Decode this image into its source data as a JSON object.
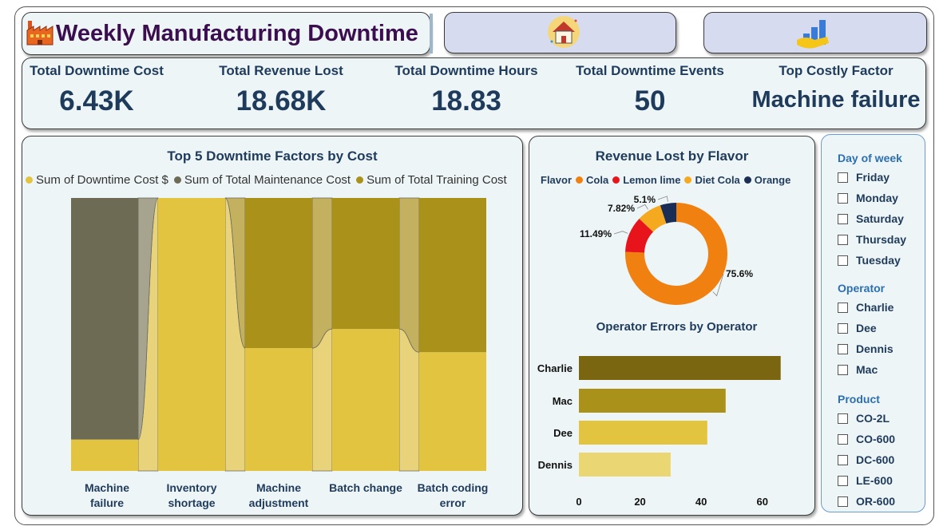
{
  "header": {
    "title": "Weekly Manufacturing Downtime",
    "icons": [
      "factory-icon",
      "home-icon",
      "bar-chart-icon"
    ]
  },
  "kpis": [
    {
      "label": "Total Downtime Cost",
      "value": "6.43K"
    },
    {
      "label": "Total Revenue Lost",
      "value": "18.68K"
    },
    {
      "label": "Total Downtime Hours",
      "value": "18.83"
    },
    {
      "label": "Total Downtime Events",
      "value": "50"
    },
    {
      "label": "Top Costly Factor",
      "value": "Machine failure"
    }
  ],
  "factors_chart": {
    "title": "Top 5 Downtime Factors by Cost",
    "legend": [
      {
        "label": "Sum of Downtime Cost $",
        "color": "#e3c440"
      },
      {
        "label": "Sum of Total Maintenance Cost",
        "color": "#6e6b55"
      },
      {
        "label": "Sum of Total Training Cost",
        "color": "#a9911a"
      }
    ],
    "categories_line1": [
      "Machine",
      "Inventory",
      "Machine",
      "Batch change",
      "Batch coding"
    ],
    "categories_line2": [
      "failure",
      "shortage",
      "adjustment",
      "",
      "error"
    ]
  },
  "flavor_chart": {
    "title": "Revenue Lost by Flavor",
    "legend_title": "Flavor",
    "legend": [
      {
        "label": "Cola",
        "color": "#f08010"
      },
      {
        "label": "Lemon lime",
        "color": "#e8141c"
      },
      {
        "label": "Diet Cola",
        "color": "#f4a91f"
      },
      {
        "label": "Orange",
        "color": "#1a2e55"
      }
    ],
    "labels": [
      "75.6%",
      "11.49%",
      "7.82%",
      "5.1%"
    ]
  },
  "operator_chart": {
    "title": "Operator Errors by Operator",
    "x_ticks": [
      "0",
      "20",
      "40",
      "60"
    ]
  },
  "slicers": {
    "day": {
      "title": "Day of week",
      "items": [
        "Friday",
        "Monday",
        "Saturday",
        "Thursday",
        "Tuesday"
      ]
    },
    "operator": {
      "title": "Operator",
      "items": [
        "Charlie",
        "Dee",
        "Dennis",
        "Mac"
      ]
    },
    "product": {
      "title": "Product",
      "items": [
        "CO-2L",
        "CO-600",
        "DC-600",
        "LE-600",
        "OR-600"
      ]
    }
  },
  "chart_data": [
    {
      "type": "bar",
      "title": "Top 5 Downtime Factors by Cost",
      "stacked": "100%",
      "categories": [
        "Machine failure",
        "Inventory shortage",
        "Machine adjustment",
        "Batch change",
        "Batch coding error"
      ],
      "series": [
        {
          "name": "Sum of Downtime Cost $",
          "color": "#e3c440",
          "values": [
            11.5,
            100,
            45,
            52,
            43.5
          ]
        },
        {
          "name": "Sum of Total Maintenance Cost",
          "color": "#6e6b55",
          "values": [
            88.5,
            0,
            0,
            0,
            0
          ]
        },
        {
          "name": "Sum of Total Training Cost",
          "color": "#a9911a",
          "values": [
            0,
            0,
            55,
            48,
            56.5
          ]
        }
      ],
      "ylim": [
        0,
        100
      ]
    },
    {
      "type": "pie",
      "title": "Revenue Lost by Flavor",
      "categories": [
        "Cola",
        "Lemon lime",
        "Diet Cola",
        "Orange"
      ],
      "values": [
        75.6,
        11.49,
        7.82,
        5.1
      ],
      "colors": [
        "#f08010",
        "#e8141c",
        "#f4a91f",
        "#1a2e55"
      ]
    },
    {
      "type": "bar",
      "orientation": "horizontal",
      "title": "Operator Errors by Operator",
      "categories": [
        "Charlie",
        "Mac",
        "Dee",
        "Dennis"
      ],
      "values": [
        66,
        48,
        42,
        30
      ],
      "colors": [
        "#7a6510",
        "#a9911a",
        "#e3c440",
        "#ead672"
      ],
      "xlim": [
        0,
        70
      ],
      "x_ticks": [
        0,
        20,
        40,
        60
      ]
    }
  ]
}
